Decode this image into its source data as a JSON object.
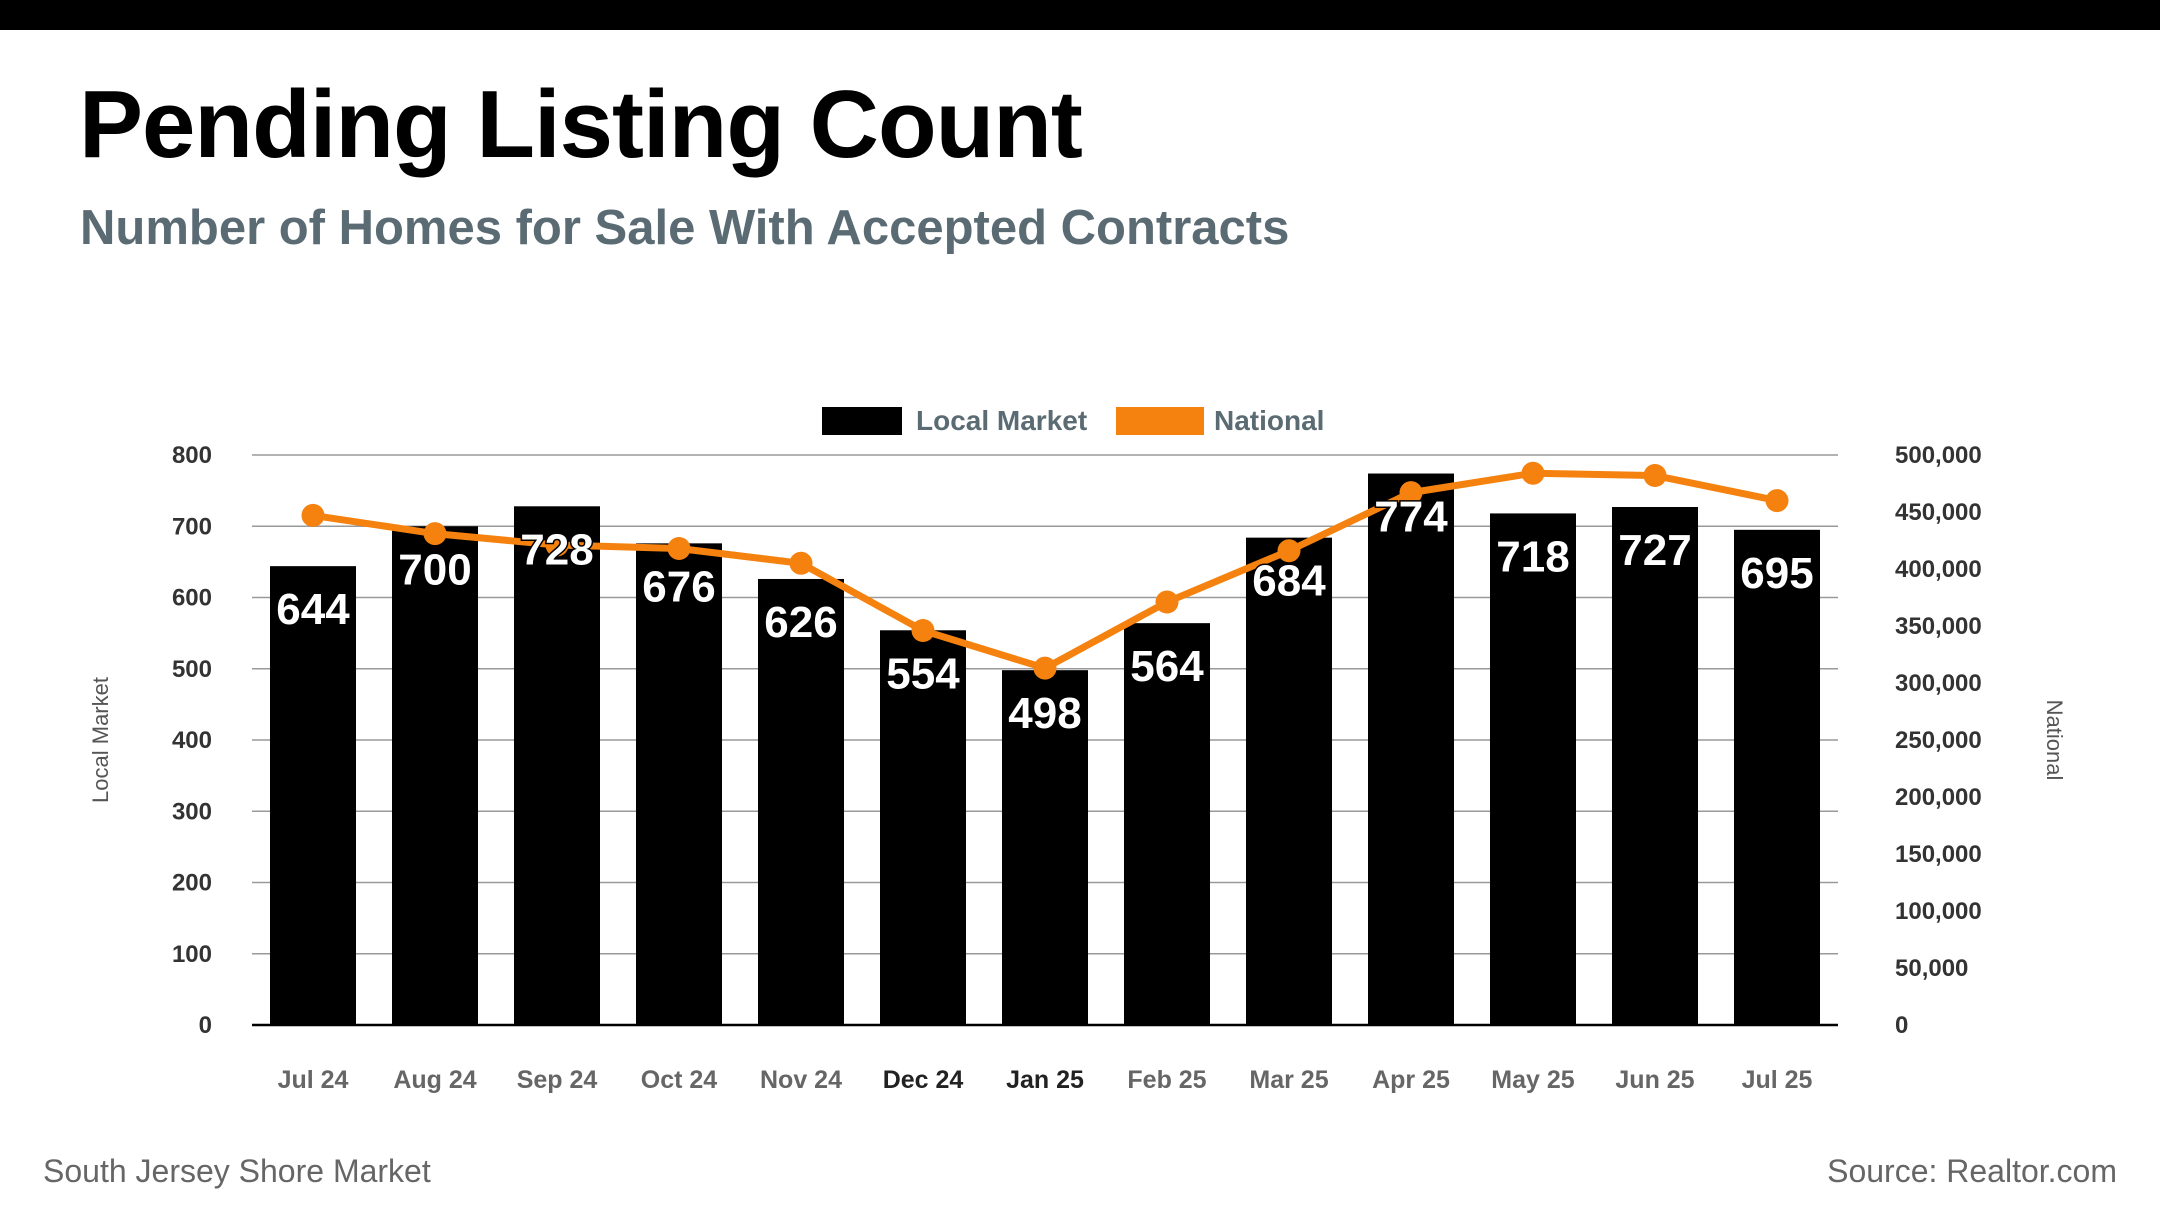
{
  "header": {
    "title": "Pending Listing Count",
    "subtitle": "Number of Homes for Sale With Accepted Contracts"
  },
  "footer": {
    "left": "South Jersey Shore Market",
    "right": "Source: Realtor.com"
  },
  "colors": {
    "bar": "#000000",
    "line": "#f5820f",
    "grid": "#9a9a9a"
  },
  "chart_data": {
    "type": "bar",
    "categories": [
      "Jul 24",
      "Aug 24",
      "Sep 24",
      "Oct 24",
      "Nov 24",
      "Dec 24",
      "Jan 25",
      "Feb 25",
      "Mar 25",
      "Apr 25",
      "May 25",
      "Jun 25",
      "Jul 25"
    ],
    "highlight_categories": [
      "Dec 24",
      "Jan 25"
    ],
    "series": [
      {
        "name": "Local Market",
        "type": "bar",
        "axis": "left",
        "values": [
          644,
          700,
          728,
          676,
          626,
          554,
          498,
          564,
          684,
          774,
          718,
          727,
          695
        ],
        "data_labels": true
      },
      {
        "name": "National",
        "type": "line",
        "axis": "right",
        "values": [
          447000,
          431000,
          421000,
          418000,
          405000,
          346000,
          313000,
          371000,
          416000,
          467000,
          484000,
          482000,
          460000
        ],
        "data_labels": false
      }
    ],
    "y_left": {
      "label": "Local Market",
      "ylim": [
        0,
        800
      ],
      "ticks": [
        "0",
        "100",
        "200",
        "300",
        "400",
        "500",
        "600",
        "700",
        "800"
      ]
    },
    "y_right": {
      "label": "National",
      "ylim": [
        0,
        500000
      ],
      "ticks": [
        "0",
        "50,000",
        "100,000",
        "150,000",
        "200,000",
        "250,000",
        "300,000",
        "350,000",
        "400,000",
        "450,000",
        "500,000"
      ]
    },
    "legend": {
      "position": "top-center",
      "items": [
        "Local Market",
        "National"
      ]
    },
    "grid": true
  }
}
